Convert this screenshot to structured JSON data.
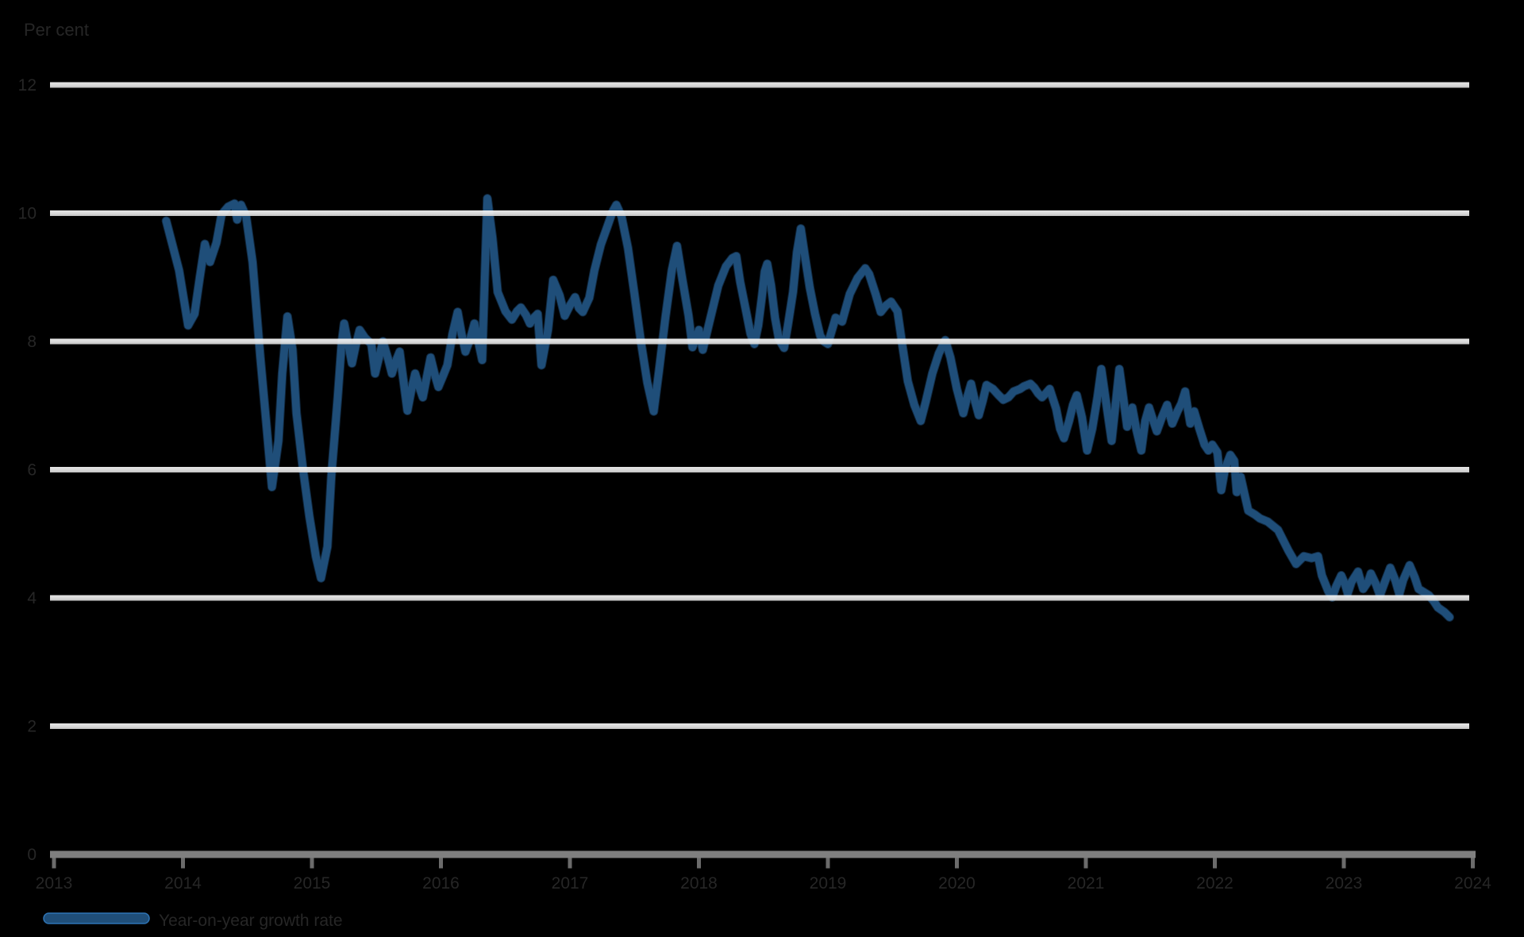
{
  "title": "Per cent",
  "legend": {
    "label": "Year-on-year growth rate",
    "swatch_color": "#1f4e79"
  },
  "colors": {
    "background": "#000000",
    "series_line": "#1f4e79",
    "series_edge": "#2e74b5",
    "gridline_light": "#e9e9e9",
    "gridline_light_top": "#f8f8f8",
    "gridline_light_bottom": "#d2d2d2",
    "axis_line": "#7f7f7f",
    "tick_mark": "#6b6b6b",
    "label_text": "#262626"
  },
  "y_axis": {
    "labels": [
      "12",
      "10",
      "8",
      "6",
      "4",
      "2",
      "0"
    ],
    "values": [
      12,
      10,
      8,
      6,
      4,
      2,
      0
    ]
  },
  "x_axis": {
    "labels": [
      "2013",
      "2014",
      "2015",
      "2016",
      "2017",
      "2018",
      "2019",
      "2020",
      "2021",
      "2022",
      "2023",
      "2024"
    ],
    "values": [
      2013,
      2014,
      2015,
      2016,
      2017,
      2018,
      2019,
      2020,
      2021,
      2022,
      2023,
      2024
    ]
  },
  "chart_data": {
    "type": "line",
    "title": "Per cent",
    "xlabel": "",
    "ylabel": "Per cent",
    "xlim": [
      2013,
      2024
    ],
    "ylim": [
      0,
      13.3
    ],
    "grid": true,
    "gridlines_over_series": true,
    "legend_position": "bottom-left",
    "y_ticks": [
      0,
      2,
      4,
      6,
      8,
      10,
      12
    ],
    "x_ticks": [
      2013,
      2014,
      2015,
      2016,
      2017,
      2018,
      2019,
      2020,
      2021,
      2022,
      2023,
      2024
    ],
    "series": [
      {
        "name": "Year-on-year growth rate",
        "color": "#1f4e79",
        "points": [
          [
            2013.87,
            9.88
          ],
          [
            2013.97,
            9.11
          ],
          [
            2014.04,
            8.25
          ],
          [
            2014.09,
            8.43
          ],
          [
            2014.13,
            8.99
          ],
          [
            2014.17,
            9.52
          ],
          [
            2014.21,
            9.24
          ],
          [
            2014.26,
            9.54
          ],
          [
            2014.3,
            9.98
          ],
          [
            2014.35,
            10.1
          ],
          [
            2014.4,
            10.15
          ],
          [
            2014.42,
            9.9
          ],
          [
            2014.45,
            10.13
          ],
          [
            2014.49,
            9.95
          ],
          [
            2014.54,
            9.24
          ],
          [
            2014.6,
            7.75
          ],
          [
            2014.65,
            6.64
          ],
          [
            2014.69,
            5.73
          ],
          [
            2014.74,
            6.45
          ],
          [
            2014.77,
            7.5
          ],
          [
            2014.81,
            8.39
          ],
          [
            2014.85,
            7.87
          ],
          [
            2014.88,
            6.88
          ],
          [
            2014.93,
            6.02
          ],
          [
            2014.98,
            5.27
          ],
          [
            2015.03,
            4.65
          ],
          [
            2015.07,
            4.31
          ],
          [
            2015.12,
            4.8
          ],
          [
            2015.15,
            5.89
          ],
          [
            2015.2,
            7.13
          ],
          [
            2015.23,
            7.97
          ],
          [
            2015.25,
            8.28
          ],
          [
            2015.28,
            7.97
          ],
          [
            2015.31,
            7.66
          ],
          [
            2015.34,
            7.94
          ],
          [
            2015.37,
            8.18
          ],
          [
            2015.41,
            8.06
          ],
          [
            2015.46,
            7.96
          ],
          [
            2015.49,
            7.5
          ],
          [
            2015.52,
            7.75
          ],
          [
            2015.55,
            8.0
          ],
          [
            2015.59,
            7.73
          ],
          [
            2015.62,
            7.5
          ],
          [
            2015.65,
            7.69
          ],
          [
            2015.68,
            7.84
          ],
          [
            2015.71,
            7.38
          ],
          [
            2015.74,
            6.92
          ],
          [
            2015.77,
            7.23
          ],
          [
            2015.8,
            7.5
          ],
          [
            2015.83,
            7.3
          ],
          [
            2015.86,
            7.13
          ],
          [
            2015.89,
            7.44
          ],
          [
            2015.92,
            7.75
          ],
          [
            2015.95,
            7.5
          ],
          [
            2015.98,
            7.29
          ],
          [
            2016.02,
            7.48
          ],
          [
            2016.05,
            7.63
          ],
          [
            2016.09,
            8.12
          ],
          [
            2016.13,
            8.46
          ],
          [
            2016.16,
            8.12
          ],
          [
            2016.19,
            7.84
          ],
          [
            2016.23,
            8.06
          ],
          [
            2016.26,
            8.28
          ],
          [
            2016.29,
            8.0
          ],
          [
            2016.32,
            7.71
          ],
          [
            2016.34,
            8.99
          ],
          [
            2016.36,
            10.23
          ],
          [
            2016.4,
            9.61
          ],
          [
            2016.44,
            8.77
          ],
          [
            2016.5,
            8.47
          ],
          [
            2016.55,
            8.34
          ],
          [
            2016.59,
            8.47
          ],
          [
            2016.62,
            8.53
          ],
          [
            2016.66,
            8.41
          ],
          [
            2016.69,
            8.28
          ],
          [
            2016.72,
            8.37
          ],
          [
            2016.75,
            8.43
          ],
          [
            2016.78,
            7.63
          ],
          [
            2016.83,
            8.18
          ],
          [
            2016.87,
            8.96
          ],
          [
            2016.92,
            8.72
          ],
          [
            2016.96,
            8.4
          ],
          [
            2017.0,
            8.56
          ],
          [
            2017.04,
            8.69
          ],
          [
            2017.07,
            8.52
          ],
          [
            2017.1,
            8.46
          ],
          [
            2017.15,
            8.68
          ],
          [
            2017.19,
            9.11
          ],
          [
            2017.24,
            9.51
          ],
          [
            2017.29,
            9.79
          ],
          [
            2017.33,
            10.02
          ],
          [
            2017.36,
            10.13
          ],
          [
            2017.4,
            9.95
          ],
          [
            2017.45,
            9.46
          ],
          [
            2017.5,
            8.74
          ],
          [
            2017.55,
            8.0
          ],
          [
            2017.6,
            7.36
          ],
          [
            2017.65,
            6.91
          ],
          [
            2017.69,
            7.53
          ],
          [
            2017.74,
            8.37
          ],
          [
            2017.79,
            9.11
          ],
          [
            2017.83,
            9.49
          ],
          [
            2017.87,
            8.99
          ],
          [
            2017.92,
            8.4
          ],
          [
            2017.95,
            7.91
          ],
          [
            2018.0,
            8.18
          ],
          [
            2018.03,
            7.87
          ],
          [
            2018.09,
            8.37
          ],
          [
            2018.15,
            8.87
          ],
          [
            2018.21,
            9.17
          ],
          [
            2018.26,
            9.3
          ],
          [
            2018.29,
            9.33
          ],
          [
            2018.32,
            8.93
          ],
          [
            2018.37,
            8.43
          ],
          [
            2018.4,
            8.12
          ],
          [
            2018.43,
            7.96
          ],
          [
            2018.46,
            8.25
          ],
          [
            2018.49,
            8.72
          ],
          [
            2018.51,
            9.09
          ],
          [
            2018.53,
            9.21
          ],
          [
            2018.56,
            8.87
          ],
          [
            2018.59,
            8.37
          ],
          [
            2018.62,
            8.04
          ],
          [
            2018.66,
            7.9
          ],
          [
            2018.69,
            8.25
          ],
          [
            2018.73,
            8.77
          ],
          [
            2018.76,
            9.39
          ],
          [
            2018.79,
            9.76
          ],
          [
            2018.82,
            9.36
          ],
          [
            2018.86,
            8.84
          ],
          [
            2018.9,
            8.43
          ],
          [
            2018.94,
            8.09
          ],
          [
            2018.97,
            8.0
          ],
          [
            2019.0,
            7.96
          ],
          [
            2019.06,
            8.37
          ],
          [
            2019.11,
            8.31
          ],
          [
            2019.17,
            8.74
          ],
          [
            2019.23,
            8.99
          ],
          [
            2019.29,
            9.14
          ],
          [
            2019.32,
            9.05
          ],
          [
            2019.37,
            8.74
          ],
          [
            2019.41,
            8.46
          ],
          [
            2019.45,
            8.56
          ],
          [
            2019.49,
            8.62
          ],
          [
            2019.54,
            8.47
          ],
          [
            2019.58,
            7.91
          ],
          [
            2019.62,
            7.38
          ],
          [
            2019.67,
            7.01
          ],
          [
            2019.72,
            6.76
          ],
          [
            2019.76,
            7.07
          ],
          [
            2019.81,
            7.5
          ],
          [
            2019.86,
            7.81
          ],
          [
            2019.91,
            8.02
          ],
          [
            2019.95,
            7.75
          ],
          [
            2020.0,
            7.26
          ],
          [
            2020.05,
            6.88
          ],
          [
            2020.08,
            7.13
          ],
          [
            2020.11,
            7.34
          ],
          [
            2020.14,
            7.07
          ],
          [
            2020.17,
            6.85
          ],
          [
            2020.2,
            7.07
          ],
          [
            2020.23,
            7.32
          ],
          [
            2020.28,
            7.26
          ],
          [
            2020.32,
            7.17
          ],
          [
            2020.36,
            7.09
          ],
          [
            2020.4,
            7.13
          ],
          [
            2020.44,
            7.22
          ],
          [
            2020.49,
            7.26
          ],
          [
            2020.52,
            7.3
          ],
          [
            2020.57,
            7.34
          ],
          [
            2020.6,
            7.28
          ],
          [
            2020.63,
            7.19
          ],
          [
            2020.66,
            7.13
          ],
          [
            2020.69,
            7.19
          ],
          [
            2020.72,
            7.26
          ],
          [
            2020.77,
            6.95
          ],
          [
            2020.8,
            6.64
          ],
          [
            2020.83,
            6.49
          ],
          [
            2020.87,
            6.76
          ],
          [
            2020.9,
            7.01
          ],
          [
            2020.93,
            7.16
          ],
          [
            2020.97,
            6.82
          ],
          [
            2021.01,
            6.3
          ],
          [
            2021.05,
            6.64
          ],
          [
            2021.09,
            7.13
          ],
          [
            2021.12,
            7.57
          ],
          [
            2021.16,
            7.01
          ],
          [
            2021.2,
            6.45
          ],
          [
            2021.23,
            7.01
          ],
          [
            2021.26,
            7.57
          ],
          [
            2021.29,
            7.13
          ],
          [
            2021.32,
            6.67
          ],
          [
            2021.36,
            6.97
          ],
          [
            2021.39,
            6.64
          ],
          [
            2021.43,
            6.3
          ],
          [
            2021.46,
            6.76
          ],
          [
            2021.49,
            6.97
          ],
          [
            2021.52,
            6.78
          ],
          [
            2021.55,
            6.6
          ],
          [
            2021.59,
            6.82
          ],
          [
            2021.63,
            7.01
          ],
          [
            2021.65,
            6.86
          ],
          [
            2021.67,
            6.72
          ],
          [
            2021.71,
            6.91
          ],
          [
            2021.74,
            7.03
          ],
          [
            2021.77,
            7.22
          ],
          [
            2021.79,
            6.95
          ],
          [
            2021.81,
            6.72
          ],
          [
            2021.84,
            6.91
          ],
          [
            2021.88,
            6.64
          ],
          [
            2021.92,
            6.39
          ],
          [
            2021.95,
            6.3
          ],
          [
            2021.98,
            6.39
          ],
          [
            2022.02,
            6.27
          ],
          [
            2022.05,
            5.68
          ],
          [
            2022.08,
            6.02
          ],
          [
            2022.12,
            6.23
          ],
          [
            2022.15,
            6.14
          ],
          [
            2022.17,
            5.65
          ],
          [
            2022.2,
            5.89
          ],
          [
            2022.23,
            5.62
          ],
          [
            2022.26,
            5.36
          ],
          [
            2022.31,
            5.3
          ],
          [
            2022.35,
            5.24
          ],
          [
            2022.41,
            5.19
          ],
          [
            2022.49,
            5.06
          ],
          [
            2022.57,
            4.74
          ],
          [
            2022.63,
            4.53
          ],
          [
            2022.69,
            4.65
          ],
          [
            2022.75,
            4.62
          ],
          [
            2022.8,
            4.65
          ],
          [
            2022.83,
            4.35
          ],
          [
            2022.88,
            4.1
          ],
          [
            2022.91,
            4.01
          ],
          [
            2022.94,
            4.18
          ],
          [
            2022.98,
            4.35
          ],
          [
            2023.01,
            4.21
          ],
          [
            2023.03,
            4.07
          ],
          [
            2023.06,
            4.25
          ],
          [
            2023.11,
            4.41
          ],
          [
            2023.13,
            4.27
          ],
          [
            2023.15,
            4.14
          ],
          [
            2023.19,
            4.26
          ],
          [
            2023.21,
            4.38
          ],
          [
            2023.25,
            4.21
          ],
          [
            2023.28,
            4.04
          ],
          [
            2023.32,
            4.26
          ],
          [
            2023.36,
            4.47
          ],
          [
            2023.4,
            4.27
          ],
          [
            2023.43,
            4.06
          ],
          [
            2023.46,
            4.28
          ],
          [
            2023.51,
            4.51
          ],
          [
            2023.55,
            4.32
          ],
          [
            2023.58,
            4.14
          ],
          [
            2023.62,
            4.09
          ],
          [
            2023.66,
            4.04
          ],
          [
            2023.7,
            3.94
          ],
          [
            2023.73,
            3.85
          ],
          [
            2023.78,
            3.78
          ],
          [
            2023.82,
            3.7
          ]
        ]
      }
    ]
  }
}
